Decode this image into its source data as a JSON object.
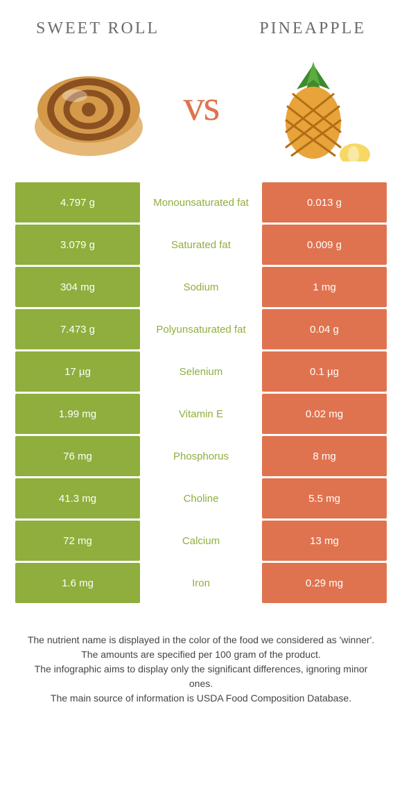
{
  "header": {
    "left_title": "Sweet roll",
    "right_title": "Pineapple",
    "vs_text": "vs"
  },
  "colors": {
    "left_bg": "#8fae3d",
    "right_bg": "#e0734f",
    "title_color": "#6b6b6b",
    "footer_color": "#444444"
  },
  "rows": [
    {
      "left": "4.797 g",
      "label": "Monounsaturated fat",
      "right": "0.013 g",
      "winner": "left"
    },
    {
      "left": "3.079 g",
      "label": "Saturated fat",
      "right": "0.009 g",
      "winner": "left"
    },
    {
      "left": "304 mg",
      "label": "Sodium",
      "right": "1 mg",
      "winner": "left"
    },
    {
      "left": "7.473 g",
      "label": "Polyunsaturated fat",
      "right": "0.04 g",
      "winner": "left"
    },
    {
      "left": "17 µg",
      "label": "Selenium",
      "right": "0.1 µg",
      "winner": "left"
    },
    {
      "left": "1.99 mg",
      "label": "Vitamin E",
      "right": "0.02 mg",
      "winner": "left"
    },
    {
      "left": "76 mg",
      "label": "Phosphorus",
      "right": "8 mg",
      "winner": "left"
    },
    {
      "left": "41.3 mg",
      "label": "Choline",
      "right": "5.5 mg",
      "winner": "left"
    },
    {
      "left": "72 mg",
      "label": "Calcium",
      "right": "13 mg",
      "winner": "left"
    },
    {
      "left": "1.6 mg",
      "label": "Iron",
      "right": "0.29 mg",
      "winner": "left"
    }
  ],
  "footer": {
    "line1": "The nutrient name is displayed in the color of the food we considered as 'winner'.",
    "line2": "The amounts are specified per 100 gram of the product.",
    "line3": "The infographic aims to display only the significant differences, ignoring minor ones.",
    "line4": "The main source of information is USDA Food Composition Database."
  }
}
